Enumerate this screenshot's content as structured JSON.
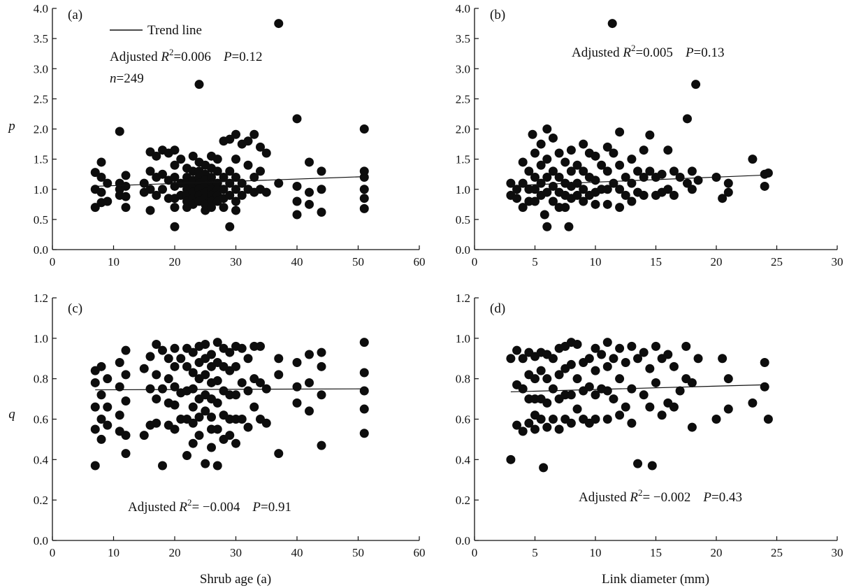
{
  "figure": {
    "legend_label": "Trend line",
    "x_axis_titles": {
      "left": "Shrub age (a)",
      "right": "Link diameter (mm)"
    },
    "y_axis_titles": {
      "top": "p",
      "bottom": "q"
    }
  },
  "chart_data": [
    {
      "id": "a",
      "type": "scatter",
      "panel_label": "(a)",
      "xlabel": "Shrub age (a)",
      "ylabel": "p",
      "xlim": [
        0,
        60
      ],
      "ylim": [
        0,
        4
      ],
      "xticks": [
        0,
        10,
        20,
        30,
        40,
        50,
        60
      ],
      "yticks": [
        0.0,
        0.5,
        1.0,
        1.5,
        2.0,
        2.5,
        3.0,
        3.5,
        4.0
      ],
      "xtick_labels": [
        "0",
        "10",
        "20",
        "30",
        "40",
        "50",
        "60"
      ],
      "ytick_labels": [
        "0.0",
        "0.5",
        "1.0",
        "1.5",
        "2.0",
        "2.5",
        "3.0",
        "3.5",
        "4.0"
      ],
      "annotation": {
        "prefix": "Adjusted ",
        "r_symbol": "R",
        "sup": "2",
        "r_value": "=0.006",
        "p_symbol": "P",
        "p_value": "=0.12"
      },
      "n_text": {
        "symbol": "n",
        "value": "=249"
      },
      "trend": {
        "x": [
          7,
          51
        ],
        "y": [
          1.05,
          1.21
        ]
      },
      "x": [
        7,
        7,
        7,
        8,
        8,
        8,
        8,
        9,
        9,
        11,
        11,
        11,
        11,
        12,
        12,
        12,
        12,
        15,
        15,
        16,
        16,
        16,
        16,
        17,
        17,
        17,
        18,
        18,
        18,
        19,
        19,
        19,
        20,
        20,
        20,
        20,
        20,
        20,
        20,
        21,
        21,
        21,
        22,
        22,
        22,
        22,
        22,
        22,
        22,
        23,
        23,
        23,
        23,
        23,
        23,
        23,
        24,
        24,
        24,
        24,
        24,
        24,
        24,
        24,
        25,
        25,
        25,
        25,
        25,
        25,
        25,
        25,
        26,
        26,
        26,
        26,
        26,
        26,
        26,
        26,
        27,
        27,
        27,
        27,
        27,
        27,
        28,
        28,
        28,
        28,
        28,
        29,
        29,
        29,
        29,
        29,
        30,
        30,
        30,
        30,
        30,
        30,
        31,
        31,
        31,
        32,
        32,
        32,
        33,
        33,
        33,
        34,
        34,
        34,
        35,
        35,
        37,
        37,
        40,
        40,
        40,
        40,
        42,
        42,
        42,
        44,
        44,
        44,
        51,
        51,
        51,
        51,
        51,
        51
      ],
      "y": [
        1.28,
        1.0,
        0.7,
        1.45,
        1.2,
        0.95,
        0.78,
        1.1,
        0.8,
        1.96,
        1.1,
        0.9,
        1.0,
        1.23,
        1.05,
        0.88,
        0.7,
        1.1,
        0.95,
        1.62,
        1.3,
        1.0,
        0.65,
        1.55,
        1.2,
        0.9,
        1.65,
        1.25,
        1.0,
        1.6,
        1.15,
        0.85,
        1.65,
        1.4,
        1.2,
        1.05,
        0.85,
        0.7,
        0.38,
        1.5,
        1.1,
        0.9,
        1.35,
        1.2,
        1.1,
        1.0,
        0.9,
        0.8,
        0.7,
        1.55,
        1.3,
        1.15,
        1.05,
        0.95,
        0.85,
        0.75,
        2.74,
        1.45,
        1.3,
        1.2,
        1.1,
        1.0,
        0.9,
        0.8,
        1.4,
        1.25,
        1.15,
        1.05,
        0.95,
        0.85,
        0.75,
        0.65,
        1.55,
        1.35,
        1.2,
        1.1,
        1.0,
        0.9,
        0.8,
        0.7,
        1.5,
        1.3,
        1.1,
        1.0,
        0.9,
        0.8,
        1.8,
        1.2,
        1.0,
        0.85,
        0.7,
        1.83,
        1.3,
        1.1,
        0.9,
        0.38,
        1.91,
        1.5,
        1.2,
        1.0,
        0.8,
        0.65,
        1.75,
        1.1,
        0.9,
        1.8,
        1.4,
        1.0,
        1.91,
        1.2,
        0.95,
        1.7,
        1.3,
        1.0,
        1.6,
        0.95,
        3.75,
        1.1,
        2.17,
        1.05,
        0.8,
        0.58,
        1.45,
        0.95,
        0.75,
        1.3,
        1.0,
        0.62,
        2.0,
        1.3,
        1.2,
        1.0,
        0.85,
        0.68
      ]
    },
    {
      "id": "b",
      "type": "scatter",
      "panel_label": "(b)",
      "xlabel": "Link diameter (mm)",
      "ylabel": "p",
      "xlim": [
        0,
        30
      ],
      "ylim": [
        0,
        4
      ],
      "xticks": [
        0,
        5,
        10,
        15,
        20,
        25,
        30
      ],
      "yticks": [
        0.0,
        0.5,
        1.0,
        1.5,
        2.0,
        2.5,
        3.0,
        3.5,
        4.0
      ],
      "xtick_labels": [
        "0",
        "5",
        "10",
        "15",
        "20",
        "25",
        "30"
      ],
      "ytick_labels": [
        "0.0",
        "0.5",
        "1.0",
        "1.5",
        "2.0",
        "2.5",
        "3.0",
        "3.5",
        "4.0"
      ],
      "annotation": {
        "prefix": "Adjusted ",
        "r_symbol": "R",
        "sup": "2",
        "r_value": "=0.005",
        "p_symbol": "P",
        "p_value": "=0.13"
      },
      "trend": {
        "x": [
          3,
          24.5
        ],
        "y": [
          1.06,
          1.24
        ]
      },
      "x": [
        3,
        3,
        3.5,
        3.5,
        4,
        4,
        4,
        4.5,
        4.5,
        4.5,
        4.8,
        5,
        5,
        5,
        5,
        5.5,
        5.5,
        5.5,
        5.5,
        5.8,
        6,
        6,
        6,
        6,
        6,
        6.5,
        6.5,
        6.5,
        6.5,
        7,
        7,
        7,
        7,
        7.5,
        7.5,
        7.5,
        7.5,
        7.8,
        8,
        8,
        8,
        8,
        8.5,
        8.5,
        8.5,
        9,
        9,
        9,
        9,
        9.5,
        9.5,
        9.5,
        10,
        10,
        10,
        10,
        10.5,
        10.5,
        11,
        11,
        11,
        11,
        11.4,
        11.5,
        11.5,
        12,
        12,
        12,
        12,
        12.5,
        12.5,
        13,
        13,
        13,
        13.5,
        13.5,
        14,
        14,
        14,
        14.5,
        14.5,
        15,
        15,
        15.5,
        15.5,
        16,
        16,
        16.5,
        16.5,
        17,
        17.6,
        17.6,
        18,
        18,
        18.3,
        18.5,
        20,
        20.5,
        21,
        21,
        23,
        24,
        24,
        24.3
      ],
      "y": [
        1.1,
        0.9,
        1.0,
        0.85,
        1.45,
        1.1,
        0.7,
        1.3,
        1.0,
        0.8,
        1.91,
        1.6,
        1.2,
        1.0,
        0.8,
        1.75,
        1.4,
        1.1,
        0.9,
        0.58,
        2.0,
        1.5,
        1.2,
        0.95,
        0.38,
        1.85,
        1.3,
        1.05,
        0.8,
        1.6,
        1.2,
        0.95,
        0.7,
        1.45,
        1.1,
        0.9,
        0.7,
        0.38,
        1.65,
        1.3,
        1.05,
        0.85,
        1.4,
        1.1,
        0.9,
        1.75,
        1.3,
        1.0,
        0.8,
        1.6,
        1.2,
        0.9,
        1.55,
        1.15,
        0.95,
        0.75,
        1.4,
        1.0,
        1.7,
        1.3,
        1.0,
        0.75,
        3.75,
        1.6,
        1.1,
        1.95,
        1.4,
        1.0,
        0.7,
        1.2,
        0.9,
        1.5,
        1.1,
        0.8,
        1.3,
        0.95,
        1.65,
        1.2,
        0.9,
        1.9,
        1.3,
        1.2,
        0.9,
        1.25,
        0.95,
        1.65,
        1.0,
        1.3,
        0.9,
        1.2,
        2.17,
        1.1,
        1.3,
        1.0,
        2.74,
        1.15,
        1.2,
        0.85,
        1.1,
        0.95,
        1.5,
        1.25,
        1.05,
        1.27
      ]
    },
    {
      "id": "c",
      "type": "scatter",
      "panel_label": "(c)",
      "xlabel": "Shrub age (a)",
      "ylabel": "q",
      "xlim": [
        0,
        60
      ],
      "ylim": [
        0,
        1.2
      ],
      "xticks": [
        0,
        10,
        20,
        30,
        40,
        50,
        60
      ],
      "yticks": [
        0.0,
        0.2,
        0.4,
        0.6,
        0.8,
        1.0,
        1.2
      ],
      "xtick_labels": [
        "0",
        "10",
        "20",
        "30",
        "40",
        "50",
        "60"
      ],
      "ytick_labels": [
        "0.0",
        "0.2",
        "0.4",
        "0.6",
        "0.8",
        "1.0",
        "1.2"
      ],
      "annotation": {
        "prefix": "Adjusted ",
        "r_symbol": "R",
        "sup": "2",
        "r_value": "= −0.004",
        "p_symbol": "P",
        "p_value": "=0.91"
      },
      "trend": {
        "x": [
          7,
          51
        ],
        "y": [
          0.745,
          0.75
        ]
      },
      "x": [
        7,
        7,
        7,
        7,
        7,
        8,
        8,
        8,
        8,
        9,
        9,
        9,
        11,
        11,
        11,
        11,
        12,
        12,
        12,
        12,
        12,
        15,
        15,
        16,
        16,
        16,
        17,
        17,
        17,
        17,
        18,
        18,
        18,
        19,
        19,
        19,
        19,
        20,
        20,
        20,
        20,
        20,
        21,
        21,
        21,
        22,
        22,
        22,
        22,
        22,
        23,
        23,
        23,
        23,
        23,
        23,
        24,
        24,
        24,
        24,
        24,
        24,
        25,
        25,
        25,
        25,
        25,
        25,
        26,
        26,
        26,
        26,
        26,
        26,
        26,
        27,
        27,
        27,
        27,
        27,
        27,
        28,
        28,
        28,
        28,
        28,
        29,
        29,
        29,
        29,
        29,
        30,
        30,
        30,
        30,
        30,
        31,
        31,
        31,
        32,
        32,
        32,
        33,
        33,
        33,
        34,
        34,
        34,
        35,
        35,
        37,
        37,
        37,
        40,
        40,
        40,
        42,
        42,
        42,
        44,
        44,
        44,
        44,
        51,
        51,
        51,
        51,
        51
      ],
      "y": [
        0.84,
        0.78,
        0.66,
        0.55,
        0.37,
        0.86,
        0.72,
        0.6,
        0.5,
        0.8,
        0.66,
        0.57,
        0.88,
        0.76,
        0.62,
        0.54,
        0.94,
        0.82,
        0.69,
        0.52,
        0.43,
        0.85,
        0.52,
        0.91,
        0.75,
        0.57,
        0.97,
        0.82,
        0.7,
        0.58,
        0.94,
        0.75,
        0.37,
        0.9,
        0.8,
        0.68,
        0.57,
        0.95,
        0.86,
        0.76,
        0.67,
        0.55,
        0.9,
        0.73,
        0.6,
        0.95,
        0.86,
        0.74,
        0.6,
        0.42,
        0.93,
        0.83,
        0.75,
        0.66,
        0.58,
        0.48,
        0.96,
        0.88,
        0.8,
        0.7,
        0.61,
        0.52,
        0.97,
        0.9,
        0.82,
        0.72,
        0.64,
        0.38,
        0.92,
        0.86,
        0.78,
        0.7,
        0.61,
        0.55,
        0.46,
        0.98,
        0.88,
        0.79,
        0.68,
        0.55,
        0.37,
        0.95,
        0.86,
        0.74,
        0.62,
        0.5,
        0.93,
        0.84,
        0.72,
        0.6,
        0.52,
        0.96,
        0.86,
        0.72,
        0.6,
        0.48,
        0.95,
        0.78,
        0.6,
        0.9,
        0.74,
        0.56,
        0.96,
        0.8,
        0.66,
        0.96,
        0.78,
        0.6,
        0.75,
        0.58,
        0.9,
        0.82,
        0.43,
        0.88,
        0.76,
        0.68,
        0.92,
        0.78,
        0.64,
        0.93,
        0.86,
        0.72,
        0.47,
        0.98,
        0.83,
        0.74,
        0.65,
        0.53
      ]
    },
    {
      "id": "d",
      "type": "scatter",
      "panel_label": "(d)",
      "xlabel": "Link diameter (mm)",
      "ylabel": "q",
      "xlim": [
        0,
        30
      ],
      "ylim": [
        0,
        1.2
      ],
      "xticks": [
        0,
        5,
        10,
        15,
        20,
        25,
        30
      ],
      "yticks": [
        0.0,
        0.2,
        0.4,
        0.6,
        0.8,
        1.0,
        1.2
      ],
      "xtick_labels": [
        "0",
        "5",
        "10",
        "15",
        "20",
        "25",
        "30"
      ],
      "ytick_labels": [
        "0.0",
        "0.2",
        "0.4",
        "0.6",
        "0.8",
        "1.0",
        "1.2"
      ],
      "annotation": {
        "prefix": "Adjusted ",
        "r_symbol": "R",
        "sup": "2",
        "r_value": "= −0.002",
        "p_symbol": "P",
        "p_value": "=0.43"
      },
      "trend": {
        "x": [
          3,
          24
        ],
        "y": [
          0.735,
          0.77
        ]
      },
      "x": [
        3,
        3,
        3.5,
        3.5,
        3.5,
        4,
        4,
        4,
        4.5,
        4.5,
        4.5,
        4.5,
        5,
        5,
        5,
        5,
        5,
        5.5,
        5.5,
        5.5,
        5.5,
        5.7,
        6,
        6,
        6,
        6,
        6.5,
        6.5,
        6.5,
        7,
        7,
        7,
        7,
        7.5,
        7.5,
        7.5,
        7.5,
        8,
        8,
        8,
        8,
        8.5,
        8.5,
        8.5,
        9,
        9,
        9,
        9.5,
        9.5,
        9.5,
        10,
        10,
        10,
        10,
        10.5,
        10.5,
        11,
        11,
        11,
        11,
        11.5,
        11.5,
        12,
        12,
        12,
        12.5,
        12.5,
        13,
        13,
        13,
        13.5,
        13.5,
        14,
        14,
        14.5,
        14.5,
        14.7,
        15,
        15,
        15.5,
        15.5,
        16,
        16,
        16.5,
        16.5,
        17,
        17.5,
        17.5,
        18,
        18,
        18.5,
        20,
        20.5,
        21,
        21,
        23,
        24,
        24,
        24.3
      ],
      "y": [
        0.9,
        0.4,
        0.94,
        0.77,
        0.57,
        0.9,
        0.75,
        0.54,
        0.93,
        0.82,
        0.7,
        0.58,
        0.91,
        0.8,
        0.7,
        0.62,
        0.55,
        0.93,
        0.84,
        0.7,
        0.6,
        0.36,
        0.92,
        0.8,
        0.68,
        0.56,
        0.9,
        0.75,
        0.6,
        0.95,
        0.82,
        0.7,
        0.55,
        0.96,
        0.85,
        0.72,
        0.6,
        0.98,
        0.87,
        0.72,
        0.58,
        0.97,
        0.8,
        0.65,
        0.88,
        0.74,
        0.6,
        0.9,
        0.76,
        0.58,
        0.95,
        0.84,
        0.72,
        0.6,
        0.92,
        0.75,
        0.98,
        0.86,
        0.74,
        0.6,
        0.9,
        0.7,
        0.95,
        0.8,
        0.62,
        0.88,
        0.66,
        0.96,
        0.75,
        0.58,
        0.9,
        0.38,
        0.93,
        0.72,
        0.85,
        0.66,
        0.37,
        0.96,
        0.78,
        0.9,
        0.62,
        0.92,
        0.68,
        0.86,
        0.66,
        0.74,
        0.96,
        0.8,
        0.78,
        0.56,
        0.9,
        0.6,
        0.9,
        0.8,
        0.65,
        0.68,
        0.88,
        0.76,
        0.6
      ]
    }
  ]
}
